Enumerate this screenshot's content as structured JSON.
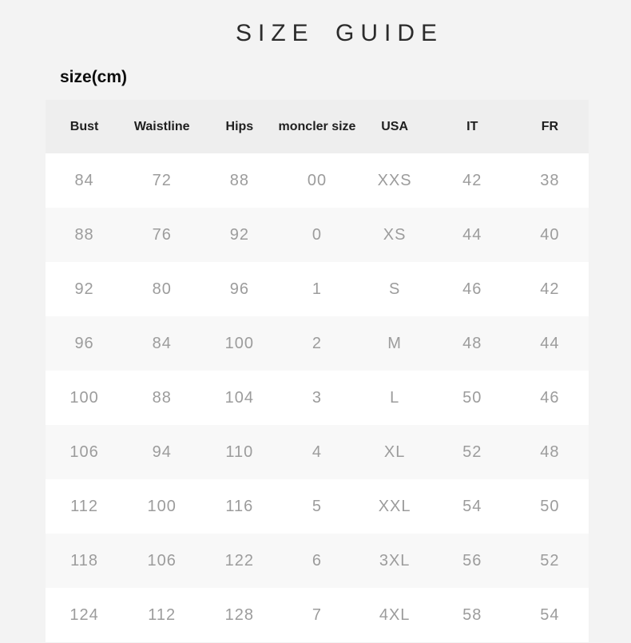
{
  "page": {
    "title": "SIZE GUIDE",
    "unit_label": "size(cm)"
  },
  "colors": {
    "page_bg": "#f3f3f3",
    "header_bg": "#eeeeee",
    "row_bg": "#ffffff",
    "row_alt_bg": "#f8f8f8",
    "header_text": "#1f1f1f",
    "cell_text": "#9c9c9c",
    "title_text": "#2b2b2b"
  },
  "chart_data": {
    "type": "table",
    "title": "SIZE GUIDE",
    "subtitle": "size(cm)",
    "columns": [
      "Bust",
      "Waistline",
      "Hips",
      "moncler size",
      "USA",
      "IT",
      "FR"
    ],
    "rows": [
      [
        "84",
        "72",
        "88",
        "00",
        "XXS",
        "42",
        "38"
      ],
      [
        "88",
        "76",
        "92",
        "0",
        "XS",
        "44",
        "40"
      ],
      [
        "92",
        "80",
        "96",
        "1",
        "S",
        "46",
        "42"
      ],
      [
        "96",
        "84",
        "100",
        "2",
        "M",
        "48",
        "44"
      ],
      [
        "100",
        "88",
        "104",
        "3",
        "L",
        "50",
        "46"
      ],
      [
        "106",
        "94",
        "110",
        "4",
        "XL",
        "52",
        "48"
      ],
      [
        "112",
        "100",
        "116",
        "5",
        "XXL",
        "54",
        "50"
      ],
      [
        "118",
        "106",
        "122",
        "6",
        "3XL",
        "56",
        "52"
      ],
      [
        "124",
        "112",
        "128",
        "7",
        "4XL",
        "58",
        "54"
      ]
    ]
  }
}
